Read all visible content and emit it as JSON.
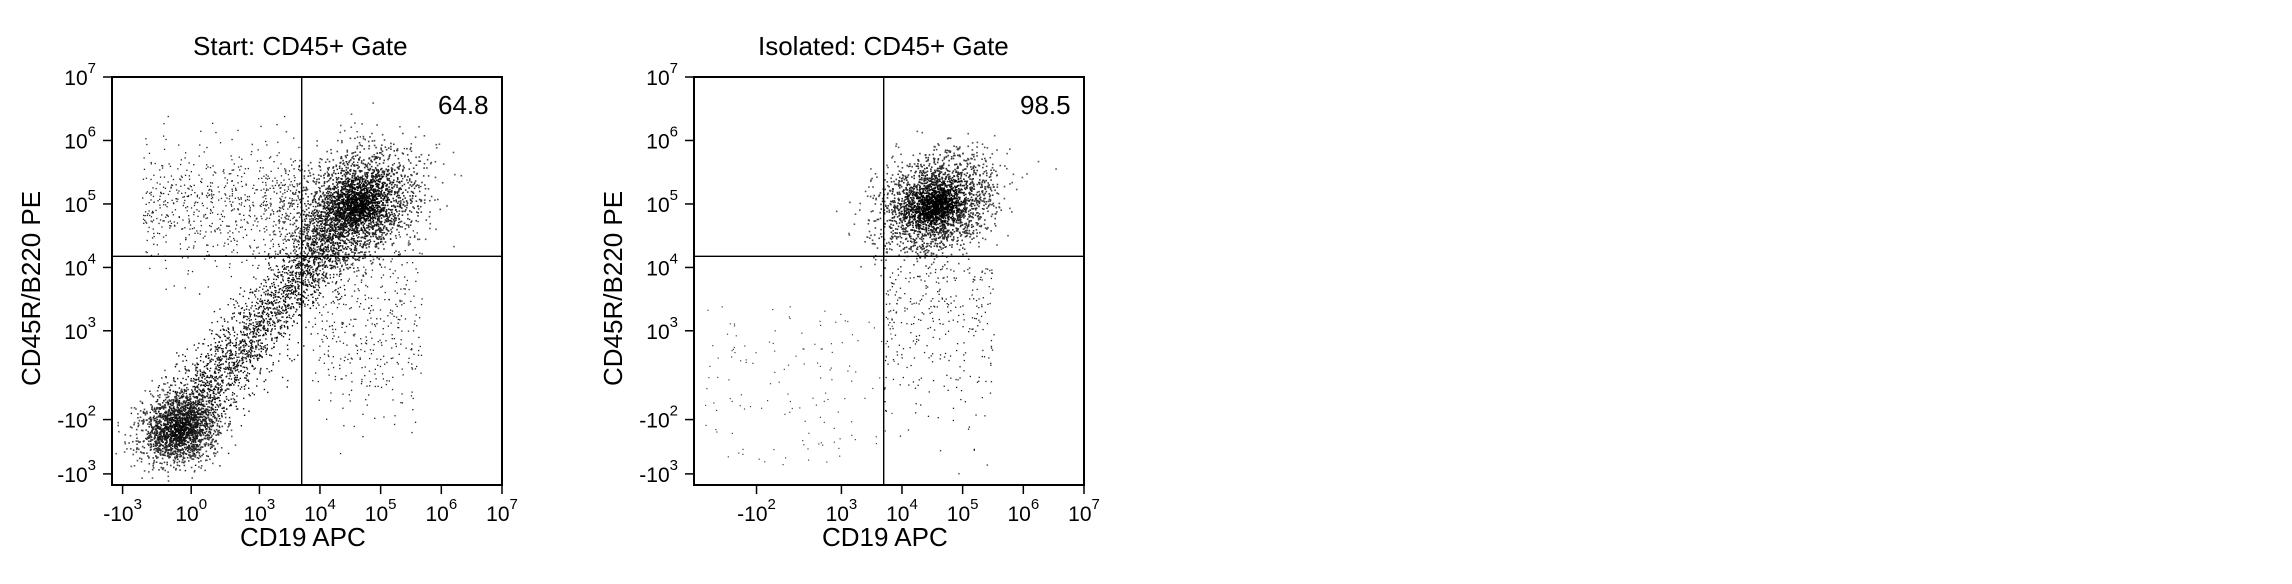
{
  "chart_data": [
    {
      "type": "scatter",
      "title": "Start: CD45+ Gate",
      "xlabel": "CD19 APC",
      "ylabel": "CD45R/B220 PE",
      "x_scale": "biexponential",
      "y_scale": "biexponential",
      "x_ticks": [
        {
          "base": "-10",
          "exp": "3"
        },
        {
          "base": "10",
          "exp": "0"
        },
        {
          "base": "10",
          "exp": "3"
        },
        {
          "base": "10",
          "exp": "4"
        },
        {
          "base": "10",
          "exp": "5"
        },
        {
          "base": "10",
          "exp": "6"
        },
        {
          "base": "10",
          "exp": "7"
        }
      ],
      "y_ticks": [
        {
          "base": "-10",
          "exp": "3"
        },
        {
          "base": "-10",
          "exp": "2"
        },
        {
          "base": "10",
          "exp": "3"
        },
        {
          "base": "10",
          "exp": "4"
        },
        {
          "base": "10",
          "exp": "5"
        },
        {
          "base": "10",
          "exp": "6"
        },
        {
          "base": "10",
          "exp": "7"
        }
      ],
      "quadrant_gate": {
        "x": 5000,
        "y": 15000
      },
      "quadrant_label": "64.8",
      "quadrant_label_position": "top-right",
      "populations": [
        {
          "name": "",
          "center": [
            40000,
            100000
          ],
          "density": "high"
        },
        {
          "name": "",
          "center": [
            0,
            -100
          ],
          "density": "high"
        },
        {
          "name": "",
          "center": [
            50000,
            5000
          ],
          "density": "low"
        },
        {
          "name": "",
          "center": [
            100,
            100000
          ],
          "density": "low"
        }
      ],
      "grid": false
    },
    {
      "type": "scatter",
      "title": "Isolated: CD45+ Gate",
      "xlabel": "CD19 APC",
      "ylabel": "CD45R/B220 PE",
      "x_scale": "biexponential",
      "y_scale": "biexponential",
      "x_ticks": [
        {
          "base": "-10",
          "exp": "2"
        },
        {
          "base": "10",
          "exp": "3"
        },
        {
          "base": "10",
          "exp": "4"
        },
        {
          "base": "10",
          "exp": "5"
        },
        {
          "base": "10",
          "exp": "6"
        },
        {
          "base": "10",
          "exp": "7"
        }
      ],
      "y_ticks": [
        {
          "base": "-10",
          "exp": "3"
        },
        {
          "base": "-10",
          "exp": "2"
        },
        {
          "base": "10",
          "exp": "3"
        },
        {
          "base": "10",
          "exp": "4"
        },
        {
          "base": "10",
          "exp": "5"
        },
        {
          "base": "10",
          "exp": "6"
        },
        {
          "base": "10",
          "exp": "7"
        }
      ],
      "quadrant_gate": {
        "x": 5000,
        "y": 15000
      },
      "quadrant_label": "98.5",
      "quadrant_label_position": "top-right",
      "populations": [
        {
          "name": "",
          "center": [
            35000,
            100000
          ],
          "density": "high"
        },
        {
          "name": "",
          "center": [
            50000,
            5000
          ],
          "density": "low"
        },
        {
          "name": "",
          "center": [
            500,
            500
          ],
          "density": "sparse"
        }
      ],
      "grid": false
    }
  ]
}
